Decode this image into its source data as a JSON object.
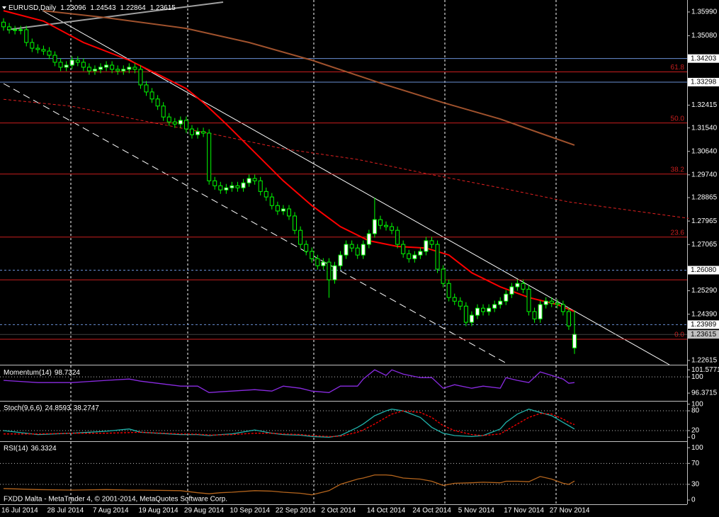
{
  "chart_data": [
    {
      "type": "candlestick",
      "title": "EURUSD,Daily",
      "categories": [
        "16 Jul 2014",
        null,
        null,
        null,
        null,
        null,
        null,
        null,
        "28 Jul 2014",
        null,
        null,
        null,
        null,
        null,
        null,
        null,
        "7 Aug 2014",
        null,
        null,
        null,
        null,
        null,
        null,
        null,
        "19 Aug 2014",
        null,
        null,
        null,
        null,
        null,
        null,
        null,
        "29 Aug 2014",
        null,
        null,
        null,
        null,
        null,
        null,
        null,
        "10 Sep 2014",
        null,
        null,
        null,
        null,
        null,
        null,
        null,
        "22 Sep 2014",
        null,
        null,
        null,
        null,
        null,
        null,
        null,
        "2 Oct 2014",
        null,
        null,
        null,
        null,
        null,
        null,
        null,
        "14 Oct 2014",
        null,
        null,
        null,
        null,
        null,
        null,
        null,
        "24 Oct 2014",
        null,
        null,
        null,
        null,
        null,
        null,
        null,
        "5 Nov 2014",
        null,
        null,
        null,
        null,
        null,
        null,
        null,
        "17 Nov 2014",
        null,
        null,
        null,
        null,
        null,
        null,
        null,
        "27 Nov 2014",
        null,
        null,
        null,
        null
      ],
      "open": [
        1.356,
        1.3542,
        1.3531,
        1.3528,
        1.3531,
        1.3482,
        1.346,
        1.3455,
        1.3449,
        1.3433,
        1.3406,
        1.3387,
        1.3395,
        1.3414,
        1.3406,
        1.3387,
        1.3373,
        1.3379,
        1.3387,
        1.3395,
        1.3379,
        1.3373,
        1.3379,
        1.3387,
        1.3379,
        1.3319,
        1.3292,
        1.3265,
        1.3238,
        1.3196,
        1.3177,
        1.3169,
        1.3183,
        1.315,
        1.3128,
        1.314,
        1.3134,
        1.2951,
        1.2932,
        1.2916,
        1.2924,
        1.2932,
        1.2924,
        1.2943,
        1.296,
        1.2951,
        1.291,
        1.2889,
        1.2856,
        1.2835,
        1.2843,
        1.2816,
        1.2761,
        1.2707,
        1.268,
        1.2652,
        1.2625,
        1.2639,
        1.2571,
        1.2625,
        1.2666,
        1.2707,
        1.2693,
        1.2666,
        1.2707,
        1.2748,
        1.2802,
        1.278,
        1.2775,
        1.2761,
        1.2707,
        1.2671,
        1.2652,
        1.2666,
        1.268,
        1.2721,
        1.2707,
        1.2612,
        1.2557,
        1.2503,
        1.2489,
        1.247,
        1.2408,
        1.2435,
        1.2462,
        1.2449,
        1.2462,
        1.2476,
        1.2489,
        1.2516,
        1.2544,
        1.2557,
        1.2535,
        1.2449,
        1.2421,
        1.2476,
        1.2489,
        1.2481,
        1.2476,
        1.2449,
        1.23096
      ],
      "high": [
        1.3575,
        1.3557,
        1.3546,
        1.3546,
        1.3546,
        1.3497,
        1.3475,
        1.347,
        1.3464,
        1.3448,
        1.3421,
        1.341,
        1.3429,
        1.3429,
        1.3421,
        1.3402,
        1.3394,
        1.3402,
        1.341,
        1.341,
        1.3394,
        1.3394,
        1.3402,
        1.3402,
        1.3394,
        1.3334,
        1.3307,
        1.328,
        1.3253,
        1.3211,
        1.3192,
        1.3198,
        1.3198,
        1.3165,
        1.3155,
        1.3155,
        1.3149,
        1.2966,
        1.2947,
        1.2939,
        1.2947,
        1.2947,
        1.2958,
        1.2975,
        1.2975,
        1.2966,
        1.2925,
        1.2904,
        1.2871,
        1.2858,
        1.2858,
        1.2831,
        1.2776,
        1.2722,
        1.2695,
        1.2667,
        1.2654,
        1.2654,
        1.264,
        1.2681,
        1.2722,
        1.2722,
        1.2708,
        1.2722,
        1.2763,
        1.2886,
        1.2817,
        1.2795,
        1.279,
        1.2776,
        1.2722,
        1.2686,
        1.2681,
        1.2695,
        1.2736,
        1.2736,
        1.2722,
        1.2627,
        1.2572,
        1.2518,
        1.2504,
        1.2485,
        1.245,
        1.2477,
        1.2477,
        1.2477,
        1.2491,
        1.2504,
        1.2531,
        1.2559,
        1.2572,
        1.2572,
        1.255,
        1.2464,
        1.2491,
        1.2504,
        1.2504,
        1.2496,
        1.2491,
        1.2464,
        1.24543
      ],
      "low": [
        1.3527,
        1.3516,
        1.3513,
        1.3513,
        1.3467,
        1.3445,
        1.344,
        1.3434,
        1.3418,
        1.3391,
        1.3372,
        1.3372,
        1.338,
        1.3391,
        1.3372,
        1.3358,
        1.3358,
        1.3364,
        1.3372,
        1.3364,
        1.3358,
        1.3358,
        1.3364,
        1.3364,
        1.3304,
        1.3277,
        1.325,
        1.3223,
        1.3181,
        1.3162,
        1.3154,
        1.3154,
        1.3135,
        1.3113,
        1.3113,
        1.3119,
        1.2936,
        1.2917,
        1.2901,
        1.2901,
        1.2909,
        1.2909,
        1.2909,
        1.2928,
        1.2936,
        1.2895,
        1.2874,
        1.2841,
        1.282,
        1.282,
        1.2801,
        1.2746,
        1.2692,
        1.2665,
        1.2637,
        1.261,
        1.261,
        1.2502,
        1.2556,
        1.261,
        1.2651,
        1.2678,
        1.2651,
        1.2651,
        1.2692,
        1.2733,
        1.2765,
        1.276,
        1.2746,
        1.2692,
        1.2656,
        1.2637,
        1.2637,
        1.2651,
        1.2665,
        1.2692,
        1.2597,
        1.2542,
        1.2488,
        1.2474,
        1.2455,
        1.2393,
        1.2393,
        1.242,
        1.2434,
        1.2434,
        1.2447,
        1.2461,
        1.2474,
        1.2501,
        1.2529,
        1.252,
        1.2434,
        1.2406,
        1.2406,
        1.2461,
        1.2466,
        1.2461,
        1.2434,
        1.2379,
        1.22864
      ],
      "close": [
        1.3542,
        1.3531,
        1.3528,
        1.3531,
        1.3482,
        1.346,
        1.3455,
        1.3449,
        1.3433,
        1.3406,
        1.3387,
        1.3395,
        1.3414,
        1.3406,
        1.3387,
        1.3373,
        1.3379,
        1.3387,
        1.3395,
        1.3379,
        1.3373,
        1.3379,
        1.3387,
        1.3379,
        1.3319,
        1.3292,
        1.3265,
        1.3238,
        1.3196,
        1.3177,
        1.3169,
        1.3183,
        1.315,
        1.3128,
        1.314,
        1.3134,
        1.2951,
        1.2932,
        1.2916,
        1.2924,
        1.2932,
        1.2924,
        1.2943,
        1.296,
        1.2951,
        1.291,
        1.2889,
        1.2856,
        1.2835,
        1.2843,
        1.2816,
        1.2761,
        1.2707,
        1.268,
        1.2652,
        1.2625,
        1.2639,
        1.2571,
        1.2625,
        1.2666,
        1.2707,
        1.2693,
        1.2666,
        1.2707,
        1.2748,
        1.2802,
        1.278,
        1.2775,
        1.2761,
        1.2707,
        1.2671,
        1.2652,
        1.2666,
        1.268,
        1.2721,
        1.2707,
        1.2612,
        1.2557,
        1.2503,
        1.2489,
        1.247,
        1.2408,
        1.2435,
        1.2462,
        1.2449,
        1.2462,
        1.2476,
        1.2489,
        1.2516,
        1.2544,
        1.2557,
        1.2535,
        1.2449,
        1.2421,
        1.2476,
        1.2489,
        1.2481,
        1.2476,
        1.2449,
        1.2394,
        1.23615
      ],
      "bull_color": "#ffffff",
      "bear_color": "#000000",
      "wick_color": "#00ff00",
      "ylim": [
        1.2245,
        1.3645
      ],
      "yticks": [
        {
          "value": 1.3599,
          "label": "1.35990"
        },
        {
          "value": 1.3508,
          "label": "1.35080"
        },
        1.32415,
        {
          "value": 1.3154,
          "label": "1.31540"
        },
        {
          "value": 1.3064,
          "label": "1.30640"
        },
        {
          "value": 1.2974,
          "label": "1.29740"
        },
        1.28865,
        1.27965,
        1.27065,
        {
          "value": 1.2529,
          "label": "1.25290"
        },
        {
          "value": 1.2439,
          "label": "1.24390"
        },
        1.22615
      ],
      "hline_color": "#6a8fd4",
      "hlines": [
        {
          "price": 1.34203,
          "dash": false
        },
        {
          "price": 1.33298,
          "dash": false
        },
        {
          "price": {
            "value": 1.2608,
            "label": "1.26080"
          },
          "dash": true
        },
        {
          "price": 1.23989,
          "dash": true
        }
      ],
      "fib_color": "#c81e1e",
      "fib_levels": [
        {
          "label": "61.8",
          "price": 1.3369
        },
        {
          "label": "50.0",
          "price": 1.3173
        },
        {
          "label": "38.2",
          "price": 1.2977
        },
        {
          "label": "23.6",
          "price": 1.2735
        },
        {
          "label": "0.0",
          "price": 1.2343
        }
      ],
      "red_lines": [
        1.2571
      ],
      "overlays": [
        {
          "color": "#ff0000",
          "width": 2,
          "dash": false,
          "x": [
            0,
            7,
            14,
            22,
            27,
            32,
            35,
            39,
            44,
            49,
            54,
            59,
            64,
            69,
            74,
            78,
            82,
            87,
            92,
            97,
            100
          ],
          "values": [
            1.3604,
            1.3564,
            1.3482,
            1.3414,
            1.336,
            1.3305,
            1.3251,
            1.3169,
            1.306,
            1.2951,
            1.2856,
            1.2775,
            1.2721,
            1.2699,
            1.2693,
            1.2666,
            1.2598,
            1.2544,
            1.2503,
            1.2476,
            1.2449
          ]
        },
        {
          "color": "#a0522d",
          "width": 2,
          "dash": false,
          "x": [
            7,
            18,
            32,
            43,
            54,
            67,
            77,
            87,
            94,
            100
          ],
          "values": [
            1.3604,
            1.3577,
            1.3536,
            1.3482,
            1.3414,
            1.3319,
            1.3251,
            1.3188,
            1.3134,
            1.3088
          ]
        },
        {
          "color": "#e02020",
          "width": 1,
          "dash": true,
          "x": [
            0,
            12,
            24,
            37,
            49,
            62,
            74,
            87,
            99,
            120
          ],
          "values": [
            1.3264,
            1.3237,
            1.3183,
            1.3129,
            1.3074,
            1.3033,
            1.2979,
            1.2924,
            1.287,
            1.2807
          ]
        }
      ]
    },
    {
      "type": "line",
      "title": "Momentum(14)",
      "x": [
        0,
        6,
        12,
        18,
        22,
        24,
        31,
        34,
        36,
        38,
        40,
        44,
        47,
        49,
        52,
        54,
        57,
        59,
        62,
        63,
        65,
        67,
        68,
        70,
        73,
        75,
        77,
        79,
        82,
        84,
        87,
        88,
        90,
        92,
        94,
        96,
        98,
        99,
        100
      ],
      "series": [
        {
          "color": "#8a2be2",
          "dash": false,
          "values": [
            99.21,
            98.73,
            98.73,
            99.21,
            99.52,
            99.05,
            97.94,
            97.94,
            96.5,
            96.67,
            96.83,
            97.14,
            96.83,
            97.94,
            97.46,
            96.83,
            96.5,
            97.94,
            97.94,
            99.52,
            101.57,
            100.32,
            101.57,
            100.63,
            99.84,
            99.84,
            97.46,
            98.25,
            97.46,
            97.94,
            97.46,
            99.84,
            99.21,
            98.73,
            101.11,
            100.32,
            99.52,
            98.57,
            98.7324
          ]
        }
      ],
      "ylim": [
        94.8,
        102.4
      ],
      "yticks": [
        101.5771,
        100,
        96.3715
      ]
    },
    {
      "type": "line",
      "title": "Stoch(9,6,6)",
      "x": [
        0,
        6,
        12,
        18,
        22,
        24,
        31,
        34,
        36,
        38,
        40,
        44,
        47,
        49,
        52,
        54,
        57,
        59,
        62,
        63,
        65,
        67,
        68,
        70,
        73,
        75,
        77,
        79,
        82,
        84,
        87,
        88,
        90,
        92,
        94,
        96,
        98,
        99,
        100
      ],
      "series": [
        {
          "color": "#20b2aa",
          "dash": false,
          "values": [
            20,
            8,
            12,
            18,
            25,
            15,
            8,
            8,
            5,
            8,
            10,
            22,
            12,
            8,
            6,
            2,
            0,
            5,
            30,
            40,
            65,
            80,
            85,
            80,
            60,
            30,
            12,
            5,
            2,
            5,
            25,
            45,
            70,
            85,
            75,
            65,
            45,
            35,
            24.8593
          ]
        },
        {
          "color": "#ff0000",
          "dash": true,
          "values": [
            10,
            10,
            12,
            12,
            14,
            15,
            10,
            9,
            7,
            7,
            8,
            12,
            12,
            10,
            8,
            5,
            2,
            3,
            15,
            22,
            40,
            60,
            70,
            80,
            75,
            60,
            35,
            20,
            8,
            5,
            10,
            20,
            40,
            60,
            72,
            70,
            55,
            45,
            38.2747
          ]
        }
      ],
      "ylim": [
        -10,
        108
      ],
      "yticks": [
        100,
        80,
        20,
        0
      ]
    },
    {
      "type": "line",
      "title": "RSI(14)",
      "x": [
        0,
        6,
        12,
        18,
        22,
        24,
        31,
        34,
        36,
        38,
        40,
        44,
        47,
        49,
        52,
        54,
        57,
        59,
        62,
        63,
        65,
        67,
        68,
        70,
        73,
        75,
        77,
        79,
        82,
        84,
        87,
        88,
        90,
        92,
        94,
        96,
        98,
        99,
        100
      ],
      "series": [
        {
          "color": "#b5651d",
          "dash": false,
          "values": [
            22,
            20,
            19,
            20,
            19,
            19,
            18,
            14,
            12,
            14,
            15,
            18,
            17,
            15,
            13,
            10,
            18,
            30,
            40,
            42,
            48,
            48,
            47,
            42,
            40,
            36,
            28,
            32,
            33,
            34,
            33,
            36,
            36,
            35,
            45,
            40,
            32,
            30,
            36.3324
          ]
        }
      ],
      "ylim": [
        -8,
        111
      ],
      "yticks": [
        100,
        70,
        30,
        0
      ]
    }
  ],
  "footer": "FXDD Malta - MetaTrader 4, © 2001-2014, MetaQuotes Software Corp."
}
